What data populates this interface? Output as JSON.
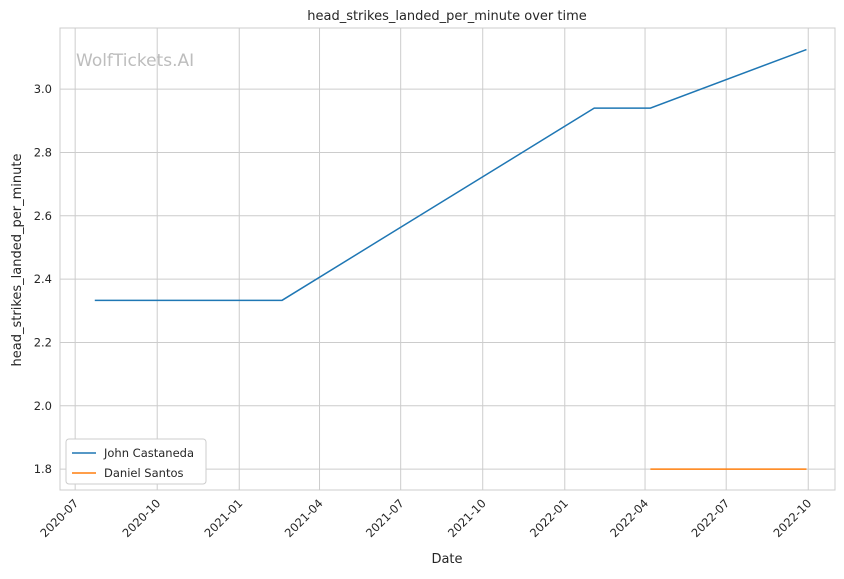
{
  "chart_data": {
    "type": "line",
    "title": "head_strikes_landed_per_minute over time",
    "xlabel": "Date",
    "ylabel": "head_strikes_landed_per_minute",
    "watermark": "WolfTickets.AI",
    "x_ticks": [
      "2020-07",
      "2020-10",
      "2021-01",
      "2021-04",
      "2021-07",
      "2021-10",
      "2022-01",
      "2022-04",
      "2022-07",
      "2022-10"
    ],
    "y_ticks": [
      "1.8",
      "2.0",
      "2.2",
      "2.4",
      "2.6",
      "2.8",
      "3.0"
    ],
    "xlim": [
      "2020-06-14",
      "2022-10-31"
    ],
    "ylim": [
      1.734,
      3.193
    ],
    "grid": true,
    "legend_position": "lower-left",
    "series": [
      {
        "name": "John Castaneda",
        "color": "#1f77b4",
        "x": [
          "2020-07-23",
          "2021-02-18",
          "2022-02-03",
          "2022-04-07",
          "2022-09-29"
        ],
        "y": [
          2.333,
          2.333,
          2.94,
          2.94,
          3.125
        ]
      },
      {
        "name": "Daniel Santos",
        "color": "#ff7f0e",
        "x": [
          "2022-04-07",
          "2022-09-29"
        ],
        "y": [
          1.8,
          1.8
        ]
      }
    ]
  }
}
